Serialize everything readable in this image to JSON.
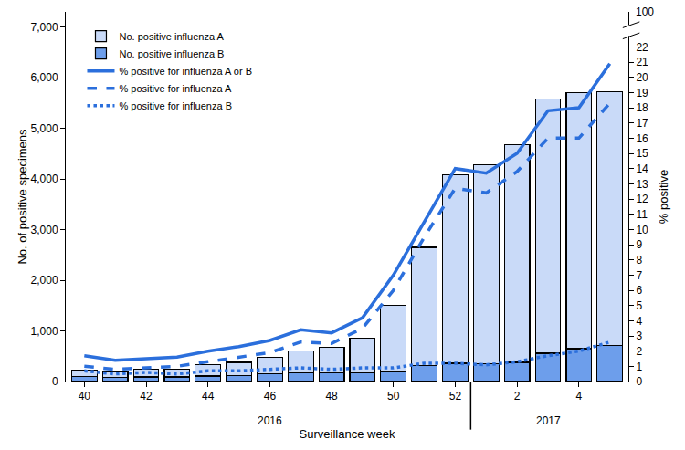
{
  "chart_data": {
    "type": "bar",
    "stacked": true,
    "x_label": "Surveillance week",
    "y_label": "No. of positive specimens",
    "y2_label": "% positive",
    "categories": [
      "40",
      null,
      "42",
      null,
      "44",
      null,
      "46",
      null,
      "48",
      null,
      "50",
      null,
      "52",
      null,
      "2",
      null,
      "4",
      null
    ],
    "series": [
      {
        "name": "No. positive influenza A",
        "type": "bar",
        "color": "#c9daf8",
        "values": [
          130,
          130,
          160,
          160,
          220,
          260,
          330,
          430,
          500,
          670,
          1290,
          2330,
          3720,
          3930,
          4300,
          5020,
          5050,
          5020
        ]
      },
      {
        "name": "No. positive influenza B",
        "type": "bar",
        "color": "#6d9eeb",
        "values": [
          100,
          80,
          90,
          90,
          110,
          120,
          150,
          170,
          180,
          180,
          210,
          320,
          360,
          350,
          380,
          560,
          650,
          710
        ]
      },
      {
        "name": "% positive for influenza A or B",
        "type": "line",
        "axis": "y2",
        "color": "#2b6fdc",
        "line_style": "solid",
        "values": [
          1.7,
          1.4,
          1.5,
          1.6,
          2.0,
          2.3,
          2.7,
          3.4,
          3.2,
          4.2,
          7.0,
          10.5,
          14.0,
          13.7,
          15.0,
          17.8,
          18.0,
          20.9
        ]
      },
      {
        "name": "% positive for influenza A",
        "type": "line",
        "axis": "y2",
        "color": "#2b6fdc",
        "line_style": "dash",
        "values": [
          1.0,
          0.8,
          0.9,
          1.0,
          1.3,
          1.6,
          1.9,
          2.6,
          2.5,
          3.5,
          6.0,
          9.5,
          12.7,
          12.4,
          13.8,
          16.0,
          16.0,
          18.3
        ]
      },
      {
        "name": "% positive for influenza B",
        "type": "line",
        "axis": "y2",
        "color": "#2b6fdc",
        "line_style": "dot",
        "values": [
          0.7,
          0.5,
          0.6,
          0.5,
          0.7,
          0.7,
          0.8,
          0.9,
          0.8,
          0.9,
          0.9,
          1.2,
          1.2,
          1.1,
          1.3,
          1.7,
          2.0,
          2.6
        ]
      }
    ],
    "ylim": [
      0,
      7300
    ],
    "yticks": [
      0,
      {
        "value": 1000,
        "label": "1,000"
      },
      {
        "value": 2000,
        "label": "2,000"
      },
      {
        "value": 3000,
        "label": "3,000"
      },
      {
        "value": 4000,
        "label": "4,000"
      },
      {
        "value": 5000,
        "label": "5,000"
      },
      {
        "value": 6000,
        "label": "6,000"
      },
      {
        "value": 7000,
        "label": "7,000"
      }
    ],
    "y2lim": [
      0,
      24.3
    ],
    "y2ticks": [
      0,
      1,
      2,
      3,
      4,
      5,
      6,
      7,
      8,
      9,
      10,
      11,
      12,
      13,
      14,
      15,
      16,
      17,
      18,
      19,
      20,
      21,
      22
    ],
    "annotations": [
      {
        "text": "2016",
        "x": 6
      },
      {
        "text": "2017",
        "x": 15
      },
      {
        "text": "100",
        "axis": "y2"
      }
    ],
    "legend": "upper left",
    "grid": false
  }
}
